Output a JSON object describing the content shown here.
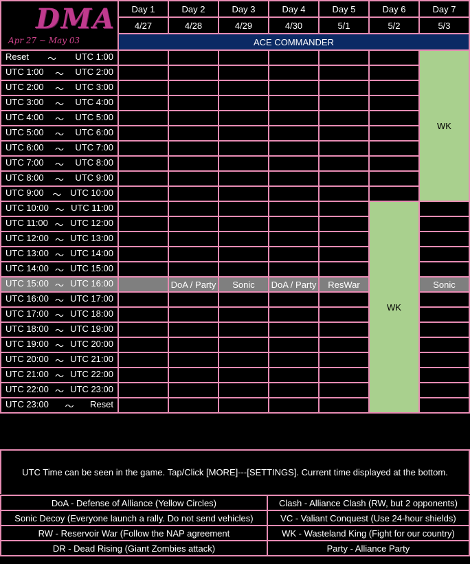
{
  "logo": {
    "title": "DMA",
    "subtitle": "Apr 27 ~ May 03"
  },
  "days": [
    "Day 1",
    "Day 2",
    "Day 3",
    "Day 4",
    "Day 5",
    "Day 6",
    "Day 7"
  ],
  "dates": [
    "4/27",
    "4/28",
    "4/29",
    "4/30",
    "5/1",
    "5/2",
    "5/3"
  ],
  "event_title": "ACE COMMANDER",
  "time_sep": "〜",
  "slots": [
    [
      "Reset",
      "UTC 1:00"
    ],
    [
      "UTC 1:00",
      "UTC 2:00"
    ],
    [
      "UTC 2:00",
      "UTC 3:00"
    ],
    [
      "UTC 3:00",
      "UTC 4:00"
    ],
    [
      "UTC 4:00",
      "UTC 5:00"
    ],
    [
      "UTC 5:00",
      "UTC 6:00"
    ],
    [
      "UTC 6:00",
      "UTC 7:00"
    ],
    [
      "UTC 7:00",
      "UTC 8:00"
    ],
    [
      "UTC 8:00",
      "UTC 9:00"
    ],
    [
      "UTC 9:00",
      "UTC 10:00"
    ],
    [
      "UTC 10:00",
      "UTC 11:00"
    ],
    [
      "UTC 11:00",
      "UTC 12:00"
    ],
    [
      "UTC 12:00",
      "UTC 13:00"
    ],
    [
      "UTC 13:00",
      "UTC 14:00"
    ],
    [
      "UTC 14:00",
      "UTC 15:00"
    ],
    [
      "UTC 15:00",
      "UTC 16:00"
    ],
    [
      "UTC 16:00",
      "UTC 17:00"
    ],
    [
      "UTC 17:00",
      "UTC 18:00"
    ],
    [
      "UTC 18:00",
      "UTC 19:00"
    ],
    [
      "UTC 19:00",
      "UTC 20:00"
    ],
    [
      "UTC 20:00",
      "UTC 21:00"
    ],
    [
      "UTC 21:00",
      "UTC 22:00"
    ],
    [
      "UTC 22:00",
      "UTC 23:00"
    ],
    [
      "UTC 23:00",
      "Reset"
    ]
  ],
  "highlight_events": [
    "",
    "DoA / Party",
    "Sonic",
    "DoA / Party",
    "ResWar",
    "",
    "Sonic"
  ],
  "wk_label": "WK",
  "wk_blocks": [
    {
      "day": "Day 7",
      "from": "Reset",
      "to": "UTC 10:00"
    },
    {
      "day": "Day 6",
      "from": "UTC 10:00",
      "to": "Reset"
    }
  ],
  "note": "UTC Time can be seen in the game. Tap/Click [MORE]---[SETTINGS]. Current time displayed at the bottom.",
  "legend": [
    [
      "DoA - Defense of Alliance (Yellow Circles)",
      "Clash - Alliance Clash (RW, but 2 opponents)"
    ],
    [
      "Sonic Decoy (Everyone launch a rally. Do not send vehicles)",
      "VC - Valiant Conquest (Use 24-hour shields)"
    ],
    [
      "RW - Reservoir War (Follow the NAP agreement",
      "WK - Wasteland King (Fight for our country)"
    ],
    [
      "DR - Dead Rising (Giant Zombies attack)",
      "Party - Alliance Party"
    ]
  ],
  "colors": {
    "border": "#e88cb4",
    "header_bar": "#0b2a64",
    "wk": "#a9d08e",
    "highlight_row": "#7f7f7f",
    "logo": "#c03a8e"
  }
}
